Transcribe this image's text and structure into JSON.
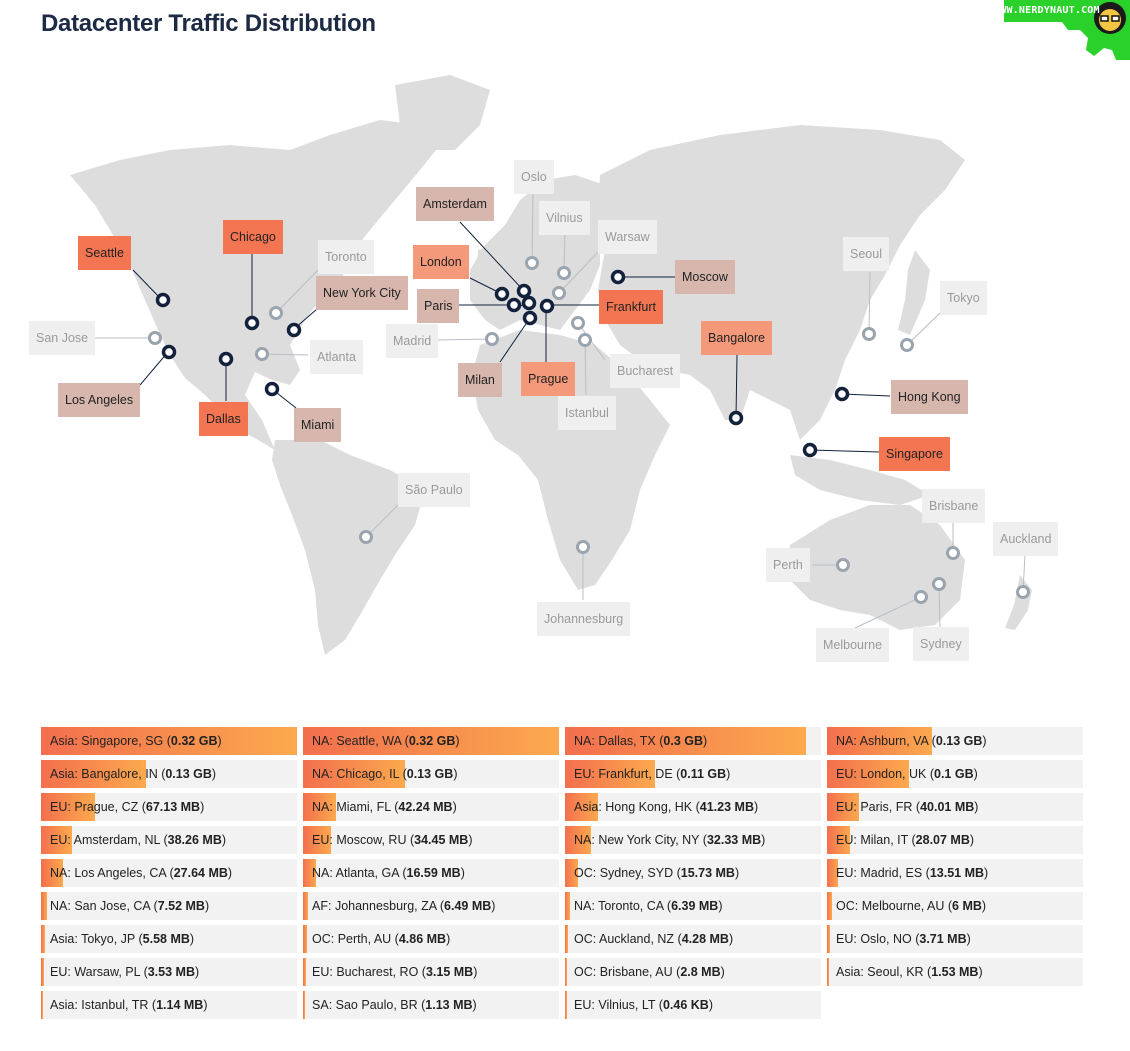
{
  "title": "Datacenter Traffic Distribution",
  "logo": {
    "text": "WWW.NERDYNAUT.COM",
    "accent": "#2bd12b"
  },
  "colors": {
    "hot": "#f47552",
    "mid": "#f4997a",
    "warm": "#d7b7ad",
    "cold": "#efefef",
    "marker_active": "#13213d",
    "marker_inactive": "#9aa4ae",
    "land": "#dddddd",
    "bar_start": "#f36f4e",
    "bar_end": "#fba94e"
  },
  "map": {
    "cities": [
      {
        "name": "Seattle",
        "heat": "hot"
      },
      {
        "name": "Chicago",
        "heat": "hot"
      },
      {
        "name": "Toronto",
        "heat": "cold"
      },
      {
        "name": "New York City",
        "heat": "warm"
      },
      {
        "name": "San Jose",
        "heat": "cold"
      },
      {
        "name": "Los Angeles",
        "heat": "warm"
      },
      {
        "name": "Atlanta",
        "heat": "cold"
      },
      {
        "name": "Dallas",
        "heat": "hot"
      },
      {
        "name": "Miami",
        "heat": "warm"
      },
      {
        "name": "São Paulo",
        "heat": "cold"
      },
      {
        "name": "Amsterdam",
        "heat": "warm"
      },
      {
        "name": "Oslo",
        "heat": "cold"
      },
      {
        "name": "Vilnius",
        "heat": "cold"
      },
      {
        "name": "Warsaw",
        "heat": "cold"
      },
      {
        "name": "London",
        "heat": "mid"
      },
      {
        "name": "Paris",
        "heat": "warm"
      },
      {
        "name": "Frankfurt",
        "heat": "hot"
      },
      {
        "name": "Moscow",
        "heat": "warm"
      },
      {
        "name": "Madrid",
        "heat": "cold"
      },
      {
        "name": "Milan",
        "heat": "warm"
      },
      {
        "name": "Prague",
        "heat": "mid"
      },
      {
        "name": "Bucharest",
        "heat": "cold"
      },
      {
        "name": "Istanbul",
        "heat": "cold"
      },
      {
        "name": "Bangalore",
        "heat": "mid"
      },
      {
        "name": "Johannesburg",
        "heat": "cold"
      },
      {
        "name": "Seoul",
        "heat": "cold"
      },
      {
        "name": "Tokyo",
        "heat": "cold"
      },
      {
        "name": "Hong Kong",
        "heat": "warm"
      },
      {
        "name": "Singapore",
        "heat": "hot"
      },
      {
        "name": "Brisbane",
        "heat": "cold"
      },
      {
        "name": "Perth",
        "heat": "cold"
      },
      {
        "name": "Auckland",
        "heat": "cold"
      },
      {
        "name": "Melbourne",
        "heat": "cold"
      },
      {
        "name": "Sydney",
        "heat": "cold"
      }
    ]
  },
  "traffic": [
    {
      "region": "Asia",
      "place": "Singapore, SG",
      "value": "0.32 GB",
      "share": 1.0
    },
    {
      "region": "NA",
      "place": "Seattle, WA",
      "value": "0.32 GB",
      "share": 1.0
    },
    {
      "region": "NA",
      "place": "Dallas, TX",
      "value": "0.3 GB",
      "share": 0.94
    },
    {
      "region": "NA",
      "place": "Ashburn, VA",
      "value": "0.13 GB",
      "share": 0.41
    },
    {
      "region": "Asia",
      "place": "Bangalore, IN",
      "value": "0.13 GB",
      "share": 0.41
    },
    {
      "region": "NA",
      "place": "Chicago, IL",
      "value": "0.13 GB",
      "share": 0.4
    },
    {
      "region": "EU",
      "place": "Frankfurt, DE",
      "value": "0.11 GB",
      "share": 0.35
    },
    {
      "region": "EU",
      "place": "London, UK",
      "value": "0.1 GB",
      "share": 0.32
    },
    {
      "region": "EU",
      "place": "Prague, CZ",
      "value": "67.13 MB",
      "share": 0.21
    },
    {
      "region": "NA",
      "place": "Miami, FL",
      "value": "42.24 MB",
      "share": 0.13
    },
    {
      "region": "Asia",
      "place": "Hong Kong, HK",
      "value": "41.23 MB",
      "share": 0.13
    },
    {
      "region": "EU",
      "place": "Paris, FR",
      "value": "40.01 MB",
      "share": 0.125
    },
    {
      "region": "EU",
      "place": "Amsterdam, NL",
      "value": "38.26 MB",
      "share": 0.12
    },
    {
      "region": "EU",
      "place": "Moscow, RU",
      "value": "34.45 MB",
      "share": 0.11
    },
    {
      "region": "NA",
      "place": "New York City, NY",
      "value": "32.33 MB",
      "share": 0.1
    },
    {
      "region": "EU",
      "place": "Milan, IT",
      "value": "28.07 MB",
      "share": 0.09
    },
    {
      "region": "NA",
      "place": "Los Angeles, CA",
      "value": "27.64 MB",
      "share": 0.086
    },
    {
      "region": "NA",
      "place": "Atlanta, GA",
      "value": "16.59 MB",
      "share": 0.052
    },
    {
      "region": "OC",
      "place": "Sydney, SYD",
      "value": "15.73 MB",
      "share": 0.049
    },
    {
      "region": "EU",
      "place": "Madrid, ES",
      "value": "13.51 MB",
      "share": 0.042
    },
    {
      "region": "NA",
      "place": "San Jose, CA",
      "value": "7.52 MB",
      "share": 0.023
    },
    {
      "region": "AF",
      "place": "Johannesburg, ZA",
      "value": "6.49 MB",
      "share": 0.02
    },
    {
      "region": "NA",
      "place": "Toronto, CA",
      "value": "6.39 MB",
      "share": 0.02
    },
    {
      "region": "OC",
      "place": "Melbourne, AU",
      "value": "6 MB",
      "share": 0.019
    },
    {
      "region": "Asia",
      "place": "Tokyo, JP",
      "value": "5.58 MB",
      "share": 0.017
    },
    {
      "region": "OC",
      "place": "Perth, AU",
      "value": "4.86 MB",
      "share": 0.015
    },
    {
      "region": "OC",
      "place": "Auckland, NZ",
      "value": "4.28 MB",
      "share": 0.013
    },
    {
      "region": "EU",
      "place": "Oslo, NO",
      "value": "3.71 MB",
      "share": 0.012
    },
    {
      "region": "EU",
      "place": "Warsaw, PL",
      "value": "3.53 MB",
      "share": 0.011
    },
    {
      "region": "EU",
      "place": "Bucharest, RO",
      "value": "3.15 MB",
      "share": 0.01
    },
    {
      "region": "OC",
      "place": "Brisbane, AU",
      "value": "2.8 MB",
      "share": 0.009
    },
    {
      "region": "Asia",
      "place": "Seoul, KR",
      "value": "1.53 MB",
      "share": 0.005
    },
    {
      "region": "Asia",
      "place": "Istanbul, TR",
      "value": "1.14 MB",
      "share": 0.004
    },
    {
      "region": "SA",
      "place": "Sao Paulo, BR",
      "value": "1.13 MB",
      "share": 0.004
    },
    {
      "region": "EU",
      "place": "Vilnius, LT",
      "value": "0.46 KB",
      "share": 0.0
    }
  ]
}
